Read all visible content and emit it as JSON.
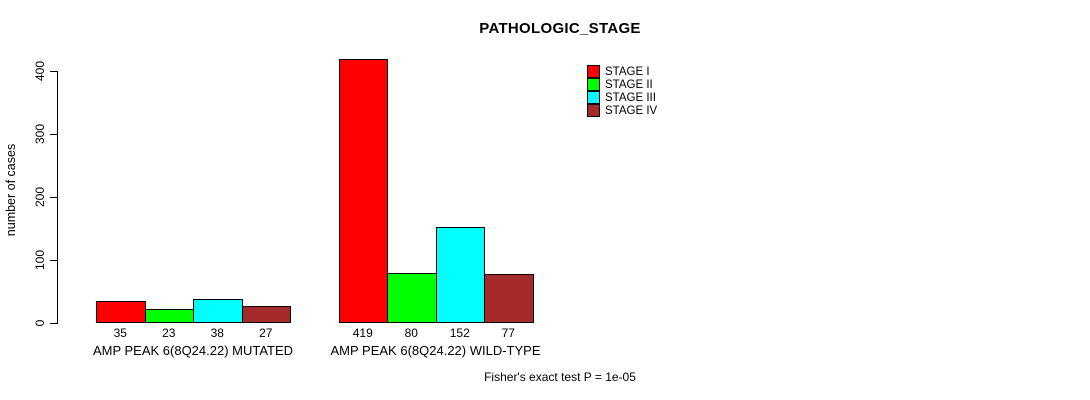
{
  "chart_data": {
    "type": "bar",
    "title": "PATHOLOGIC_STAGE",
    "xlabel": "",
    "ylabel": "number of cases",
    "ylim": [
      0,
      400
    ],
    "yticks": [
      0,
      100,
      200,
      300,
      400
    ],
    "grid": false,
    "legend_position": "top-right",
    "bar_border_color": "#000000",
    "categories": [
      "AMP PEAK 6(8Q24.22) MUTATED",
      "AMP PEAK 6(8Q24.22) WILD-TYPE"
    ],
    "series": [
      {
        "name": "STAGE I",
        "color": "#FF0000",
        "values": [
          35,
          419
        ]
      },
      {
        "name": "STAGE II",
        "color": "#00FF00",
        "values": [
          23,
          80
        ]
      },
      {
        "name": "STAGE III",
        "color": "#00FFFF",
        "values": [
          38,
          152
        ]
      },
      {
        "name": "STAGE IV",
        "color": "#A52A2A",
        "values": [
          27,
          77
        ]
      }
    ],
    "value_labels_shown": true,
    "annotation": "Fisher's exact test P = 1e-05"
  }
}
